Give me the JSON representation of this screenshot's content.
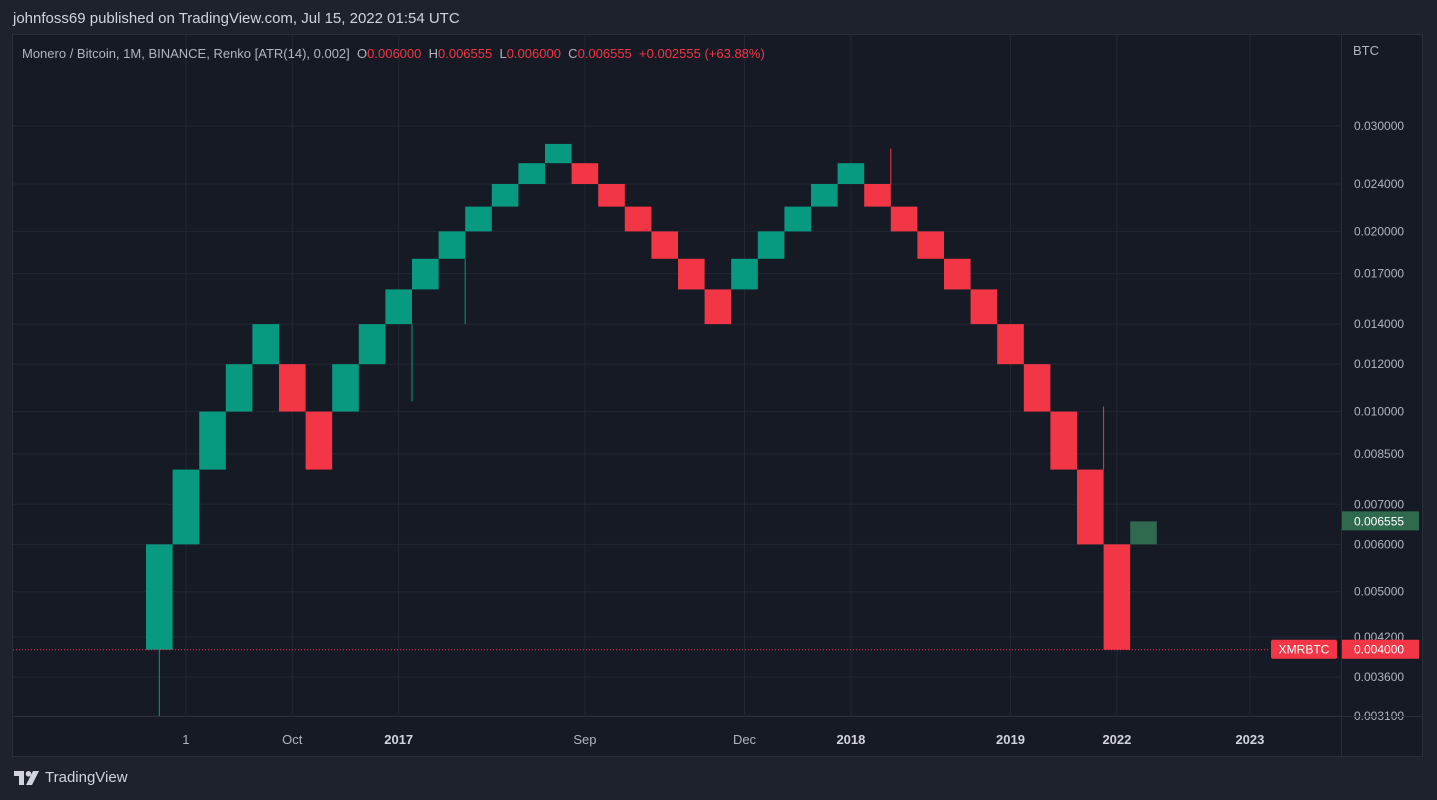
{
  "header": {
    "publisher": "johnfoss69 published on TradingView.com, Jul 15, 2022 01:54 UTC"
  },
  "legend": {
    "symbol": "Monero / Bitcoin, 1M, BINANCE, Renko [ATR(14), 0.002]",
    "o_label": "O",
    "o_value": "0.006000",
    "h_label": "H",
    "h_value": "0.006555",
    "l_label": "L",
    "l_value": "0.006000",
    "c_label": "C",
    "c_value": "0.006555",
    "change": "+0.002555 (+63.88%)"
  },
  "footer": {
    "brand": "TradingView",
    "logo_icon": "tradingview-logo-icon"
  },
  "colors": {
    "up": "#089981",
    "down": "#f23645",
    "current_up": "#2f6a4f",
    "grid": "#232734",
    "axis_text": "#b2b5be",
    "background": "#161a25"
  },
  "chart_data": {
    "type": "renko",
    "title": "Monero / Bitcoin, 1M, BINANCE, Renko [ATR(14), 0.002]",
    "yunit": "BTC",
    "yscale": "log",
    "ylim": [
      0.0031,
      0.03
    ],
    "grid": true,
    "yticks": [
      "0.030000",
      "0.024000",
      "0.020000",
      "0.017000",
      "0.014000",
      "0.012000",
      "0.010000",
      "0.008500",
      "0.007000",
      "0.006000",
      "0.005000",
      "0.004200",
      "0.003600",
      "0.003100"
    ],
    "xticks": [
      {
        "label": "1",
        "bold": false,
        "at": 1
      },
      {
        "label": "Oct",
        "bold": false,
        "at": 5
      },
      {
        "label": "2017",
        "bold": true,
        "at": 9
      },
      {
        "label": "Sep",
        "bold": false,
        "at": 16
      },
      {
        "label": "Dec",
        "bold": false,
        "at": 22
      },
      {
        "label": "2018",
        "bold": true,
        "at": 26
      },
      {
        "label": "2019",
        "bold": true,
        "at": 32
      },
      {
        "label": "2022",
        "bold": true,
        "at": 36
      },
      {
        "label": "2023",
        "bold": true,
        "at": 41
      }
    ],
    "bricks": [
      {
        "dir": "up",
        "open": 0.004,
        "close": 0.006
      },
      {
        "dir": "up",
        "open": 0.006,
        "close": 0.008
      },
      {
        "dir": "up",
        "open": 0.008,
        "close": 0.01
      },
      {
        "dir": "up",
        "open": 0.01,
        "close": 0.012
      },
      {
        "dir": "up",
        "open": 0.012,
        "close": 0.014
      },
      {
        "dir": "down",
        "open": 0.012,
        "close": 0.01
      },
      {
        "dir": "down",
        "open": 0.01,
        "close": 0.008
      },
      {
        "dir": "up",
        "open": 0.01,
        "close": 0.012
      },
      {
        "dir": "up",
        "open": 0.012,
        "close": 0.014
      },
      {
        "dir": "up",
        "open": 0.014,
        "close": 0.016
      },
      {
        "dir": "up",
        "open": 0.016,
        "close": 0.018
      },
      {
        "dir": "up",
        "open": 0.018,
        "close": 0.02
      },
      {
        "dir": "up",
        "open": 0.02,
        "close": 0.022
      },
      {
        "dir": "up",
        "open": 0.022,
        "close": 0.024
      },
      {
        "dir": "up",
        "open": 0.024,
        "close": 0.026
      },
      {
        "dir": "up",
        "open": 0.026,
        "close": 0.028
      },
      {
        "dir": "down",
        "open": 0.026,
        "close": 0.024
      },
      {
        "dir": "down",
        "open": 0.024,
        "close": 0.022
      },
      {
        "dir": "down",
        "open": 0.022,
        "close": 0.02
      },
      {
        "dir": "down",
        "open": 0.02,
        "close": 0.018
      },
      {
        "dir": "down",
        "open": 0.018,
        "close": 0.016
      },
      {
        "dir": "down",
        "open": 0.016,
        "close": 0.014
      },
      {
        "dir": "up",
        "open": 0.016,
        "close": 0.018
      },
      {
        "dir": "up",
        "open": 0.018,
        "close": 0.02
      },
      {
        "dir": "up",
        "open": 0.02,
        "close": 0.022
      },
      {
        "dir": "up",
        "open": 0.022,
        "close": 0.024
      },
      {
        "dir": "up",
        "open": 0.024,
        "close": 0.026
      },
      {
        "dir": "down",
        "open": 0.024,
        "close": 0.022
      },
      {
        "dir": "down",
        "open": 0.022,
        "close": 0.02
      },
      {
        "dir": "down",
        "open": 0.02,
        "close": 0.018
      },
      {
        "dir": "down",
        "open": 0.018,
        "close": 0.016
      },
      {
        "dir": "down",
        "open": 0.016,
        "close": 0.014
      },
      {
        "dir": "down",
        "open": 0.014,
        "close": 0.012
      },
      {
        "dir": "down",
        "open": 0.012,
        "close": 0.01
      },
      {
        "dir": "down",
        "open": 0.01,
        "close": 0.008
      },
      {
        "dir": "down",
        "open": 0.008,
        "close": 0.006
      },
      {
        "dir": "down",
        "open": 0.006,
        "close": 0.004
      },
      {
        "dir": "up",
        "open": 0.006,
        "close": 0.006555,
        "current": true
      }
    ],
    "wicks": [
      {
        "brick": 0,
        "low": 0.0031
      },
      {
        "brick": 9,
        "low": 0.0104
      },
      {
        "brick": 11,
        "low": 0.014
      },
      {
        "brick": 27,
        "high": 0.0275
      },
      {
        "brick": 35,
        "high": 0.0102
      }
    ],
    "price_labels": {
      "current": "0.006555",
      "symbol_tag": "XMRBTC",
      "line_price": "0.004000",
      "line_value": 0.004
    }
  }
}
